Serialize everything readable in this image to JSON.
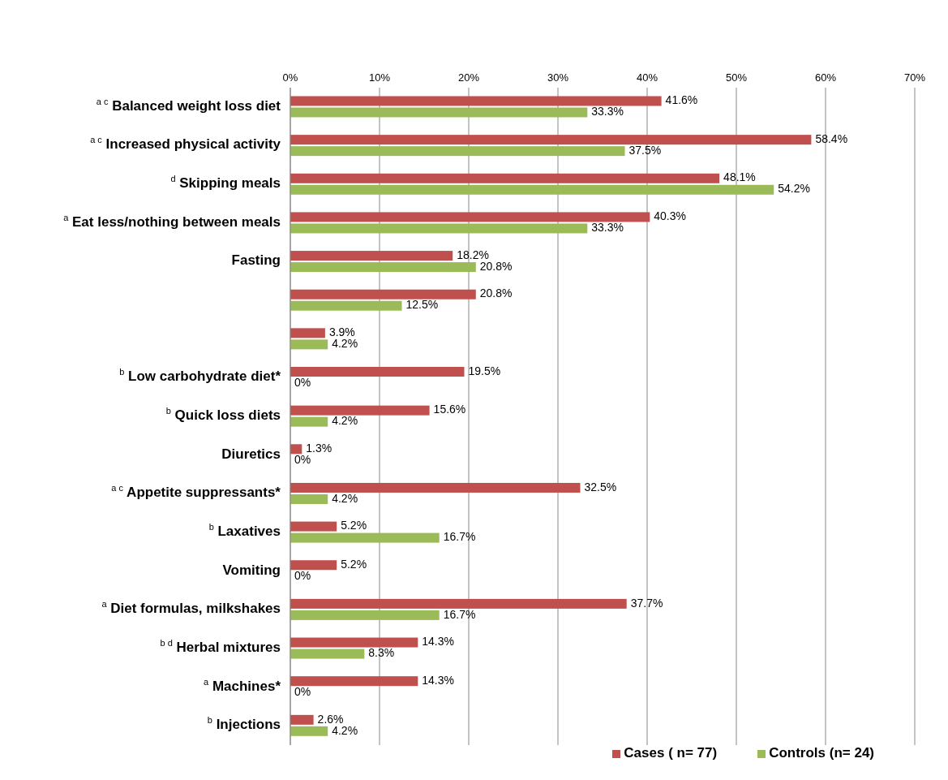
{
  "chart_data": {
    "type": "bar",
    "orientation": "horizontal",
    "categories": [
      "$^{a c}$ Balanced weight loss diet",
      "$^{a c}$ Increased physical activity",
      "$^{d}$ Skipping meals",
      "$^{a}$ Eat less/nothing between meals",
      "Fasting",
      null,
      null,
      "$^{b}$  Low carbohydrate diet*",
      "$^{b}$  Quick loss diets",
      "Diuretics",
      "$^{a c}$ Appetite suppressants*",
      "$^{b}$ Laxatives",
      "Vomiting",
      "$^{a}$ Diet formulas, milkshakes",
      "$^{b d}$ Herbal mixtures",
      "$^{a}$ Machines*",
      "$^{b}$  Injections"
    ],
    "series": [
      {
        "name": "Cases ( n= 77)",
        "color": "#c0504d",
        "values": [
          41.6,
          58.4,
          48.1,
          40.3,
          18.2,
          20.8,
          3.9,
          19.5,
          15.6,
          1.3,
          32.5,
          5.2,
          5.2,
          37.7,
          14.3,
          14.3,
          2.6
        ],
        "value_labels": [
          "41.6%",
          "58.4%",
          "48.1%",
          "40.3%",
          "18.2%",
          "20.8%",
          "3.9%",
          "19.5%",
          "15.6%",
          "1.3%",
          "32.5%",
          "5.2%",
          "5.2%",
          "37.7%",
          "14.3%",
          "14.3%",
          "2.6%"
        ]
      },
      {
        "name": "Controls (n= 24)",
        "color": "#9bbb59",
        "values": [
          33.3,
          37.5,
          54.2,
          33.3,
          20.8,
          12.5,
          4.2,
          0,
          4.2,
          0,
          4.2,
          16.7,
          0,
          16.7,
          8.3,
          0,
          4.2
        ],
        "value_labels": [
          "33.3%",
          "37.5%",
          "54.2%",
          "33.3%",
          "20.8%",
          "12.5%",
          "4.2%",
          "0%",
          "4.2%",
          "0%",
          "4.2%",
          "16.7%",
          "0%",
          "16.7%",
          "8.3%",
          "0%",
          "4.2%"
        ]
      }
    ],
    "xlim": [
      0,
      70
    ],
    "xticks": [
      {
        "value": 0,
        "label": "0%"
      },
      {
        "value": 10,
        "label": "10%"
      },
      {
        "value": 20,
        "label": "20%"
      },
      {
        "value": 30,
        "label": "30%"
      },
      {
        "value": 40,
        "label": "40%"
      },
      {
        "value": 50,
        "label": "50%"
      },
      {
        "value": 60,
        "label": "60%"
      },
      {
        "value": 70,
        "label": "70%"
      }
    ],
    "grid": "x",
    "legend": "bottom right"
  }
}
